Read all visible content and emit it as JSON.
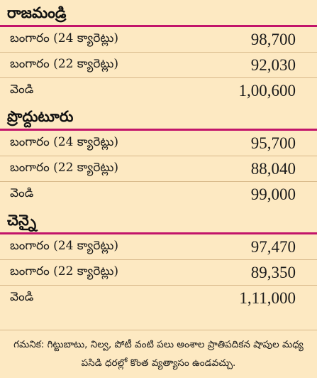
{
  "sections": [
    {
      "city": "రాజమండ్రి",
      "rows": [
        {
          "item": "బంగారం (24 క్యారెట్లు)",
          "price": "98,700"
        },
        {
          "item": "బంగారం (22 క్యారెట్లు)",
          "price": "92,030"
        },
        {
          "item": "వెండి",
          "price": "1,00,600"
        }
      ]
    },
    {
      "city": "ప్రొద్దుటూరు",
      "rows": [
        {
          "item": "బంగారం (24 క్యారెట్లు)",
          "price": "95,700"
        },
        {
          "item": "బంగారం (22 క్యారెట్లు)",
          "price": "88,040"
        },
        {
          "item": "వెండి",
          "price": "99,000"
        }
      ]
    },
    {
      "city": "చెన్నై",
      "rows": [
        {
          "item": "బంగారం (24 క్యారెట్లు)",
          "price": "97,470"
        },
        {
          "item": "బంగారం (22 క్యారెట్లు)",
          "price": "89,350"
        },
        {
          "item": "వెండి",
          "price": "1,11,000"
        }
      ]
    }
  ],
  "note": "గమనిక: గిట్టుబాటు, నిల్వ, పోటీ వంటి పలు అంశాల ప్రాతిపదికన షాపుల మధ్య పసిడి ధరల్లో కొంత వ్యత్యాసం ఉండవచ్చు.",
  "colors": {
    "background": "#fde9c2",
    "divider": "#c2146a"
  }
}
